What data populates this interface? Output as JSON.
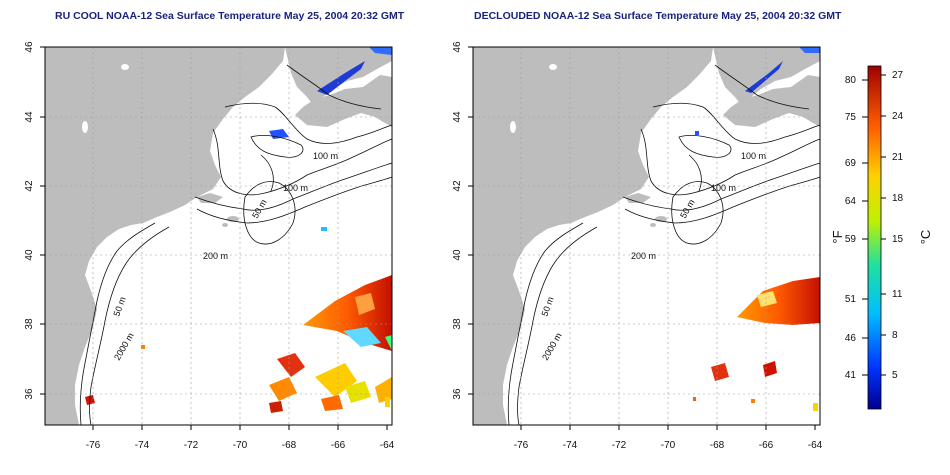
{
  "titles": {
    "left": "RU COOL NOAA-12 Sea Surface Temperature May 25, 2004 20:32 GMT",
    "right": "DECLOUDED NOAA-12 Sea Surface Temperature May 25, 2004 20:32 GMT"
  },
  "axes": {
    "lat_ticks": [
      "36",
      "38",
      "40",
      "42",
      "44",
      "46"
    ],
    "lon_ticks": [
      "-76",
      "-74",
      "-72",
      "-70",
      "-68",
      "-66",
      "-64"
    ]
  },
  "contour_labels": {
    "left": [
      "100 m",
      "100 m",
      "50 m",
      "200 m",
      "50 m",
      "2000 m"
    ],
    "right": [
      "100 m",
      "100 m",
      "50 m",
      "200 m",
      "50 m",
      "2000 m"
    ]
  },
  "colorbar": {
    "fahrenheit_ticks": [
      "80",
      "75",
      "69",
      "64",
      "59",
      "51",
      "46",
      "41"
    ],
    "celsius_ticks": [
      "27",
      "24",
      "21",
      "18",
      "15",
      "11",
      "8",
      "5"
    ],
    "f_label": "°F",
    "c_label": "°C"
  },
  "colors": {
    "land": "#bdbdbd",
    "title": "#1a237e",
    "grid": "#9e9e9e"
  }
}
